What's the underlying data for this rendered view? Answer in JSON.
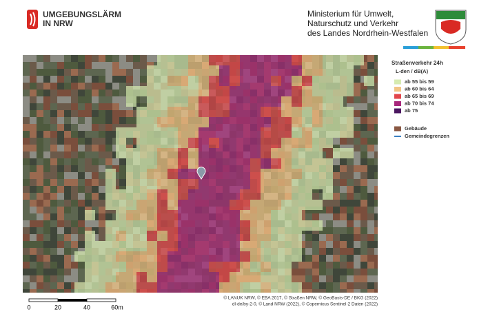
{
  "header": {
    "logo_lines": [
      "UMGEBUNGSLÄRM",
      "IN NRW"
    ],
    "ministry_lines": [
      "Ministerium für Umwelt,",
      "Naturschutz und Verkehr",
      "des Landes Nordrhein-Westfalen"
    ]
  },
  "legend": {
    "title": "Straßenverkehr 24h",
    "unit": "L-den / dB(A)",
    "classes": [
      {
        "label": "ab 55 bis 59",
        "color": "#d6ebb0"
      },
      {
        "label": "ab 60 bis 64",
        "color": "#f2c585"
      },
      {
        "label": "ab 65 bis 69",
        "color": "#e2454a"
      },
      {
        "label": "ab 70 bis 74",
        "color": "#a8277c"
      },
      {
        "label": "ab 75",
        "color": "#4a1660"
      }
    ],
    "other": [
      {
        "label": "Gebäude",
        "color": "#8a5843"
      },
      {
        "label": "Gemeindegrenzen",
        "color": "#3a7fc1"
      }
    ]
  },
  "scale_bar": {
    "labels": [
      "0",
      "20",
      "40",
      "60m"
    ]
  },
  "attribution": [
    "© LANUK NRW, © EBA 2017, © Straßen NRW, © GeoBasis-DE / BKG (2022)",
    "dl-de/by-2-0, © Land NRW (2022), © Copernicus Sentinel-2 Daten (2022)"
  ]
}
